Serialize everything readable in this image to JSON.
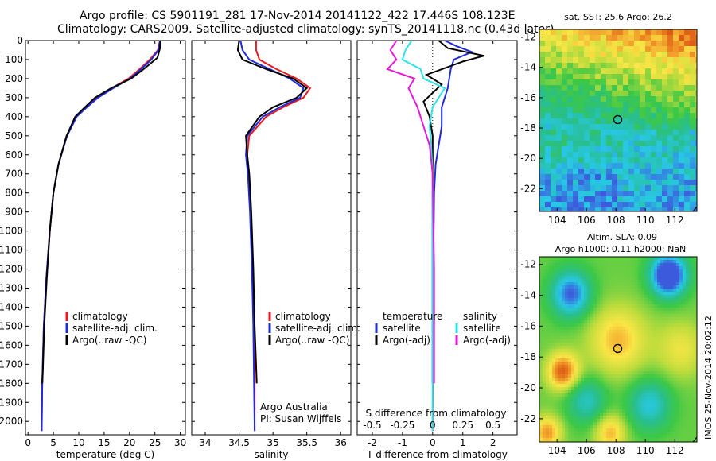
{
  "header": {
    "line1": "Argo profile: CS 5901191_281 17-Nov-2014 20141122_422 17.446S 108.123E",
    "line2": "Climatology: CARS2009. Satellite-adjusted climatology: synTS_20141118.nc (0.43d later)"
  },
  "footer_text": "IMOS 25-Nov-2014 20:02:12",
  "colors": {
    "climatology": "#e8191e",
    "satellite": "#1f2bd6",
    "argo": "#000000",
    "satellite_s": "#29e3e8",
    "argo_s": "#e31ad6"
  },
  "chart_data": [
    {
      "type": "line",
      "id": "temperature",
      "xlabel": "temperature (deg C)",
      "ylabel": "",
      "xlim": [
        -0.5,
        31
      ],
      "ylim": [
        0,
        2070
      ],
      "xticks": [
        0,
        5,
        10,
        15,
        20,
        25,
        30
      ],
      "yticks": [
        0,
        100,
        200,
        300,
        400,
        500,
        600,
        700,
        800,
        900,
        1000,
        1100,
        1200,
        1300,
        1400,
        1500,
        1600,
        1700,
        1800,
        1900,
        2000
      ],
      "legend": [
        "climatology",
        "satellite-adj. clim.",
        "Argo(..raw -QC)"
      ],
      "series": [
        {
          "name": "climatology",
          "color": "#e8191e",
          "x": [
            26.0,
            25.6,
            24.0,
            22.0,
            19.8,
            16.5,
            13.5,
            11.4,
            9.5,
            7.6,
            6.0,
            5.0,
            4.3,
            3.6,
            3.1,
            2.8,
            2.7
          ],
          "y": [
            0,
            50,
            100,
            150,
            200,
            250,
            300,
            350,
            400,
            500,
            650,
            800,
            1000,
            1250,
            1500,
            1800,
            2050
          ]
        },
        {
          "name": "satellite-adj. clim.",
          "color": "#1f2bd6",
          "x": [
            26.0,
            25.7,
            24.3,
            22.3,
            20.1,
            16.8,
            13.8,
            11.6,
            9.6,
            7.7,
            6.0,
            5.0,
            4.3,
            3.6,
            3.1,
            2.8,
            2.7
          ],
          "y": [
            0,
            50,
            100,
            150,
            200,
            250,
            300,
            350,
            400,
            500,
            650,
            800,
            1000,
            1250,
            1500,
            1800,
            2050
          ]
        },
        {
          "name": "Argo(..raw -QC)",
          "color": "#000000",
          "x": [
            26.1,
            26.0,
            25.5,
            22.8,
            20.3,
            16.4,
            13.2,
            11.2,
            9.3,
            7.6,
            6.0,
            5.0,
            4.3,
            3.7,
            3.2,
            2.9,
            2.8
          ],
          "y": [
            0,
            40,
            90,
            150,
            200,
            250,
            300,
            350,
            400,
            500,
            650,
            800,
            1000,
            1250,
            1500,
            1750,
            1800
          ]
        }
      ]
    },
    {
      "type": "line",
      "id": "salinity",
      "xlabel": "salinity",
      "xlim": [
        33.8,
        36.15
      ],
      "ylim": [
        0,
        2070
      ],
      "xticks": [
        34,
        34.5,
        35,
        35.5,
        36
      ],
      "legend": [
        "climatology",
        "satellite-adj. clim.",
        "Argo(..raw -QC)"
      ],
      "credit": [
        "Argo Australia",
        "PI: Susan Wijffels"
      ],
      "series": [
        {
          "name": "climatology",
          "color": "#e8191e",
          "x": [
            34.75,
            34.75,
            34.8,
            35.05,
            35.35,
            35.55,
            35.45,
            35.15,
            34.9,
            34.65,
            34.62,
            34.64,
            34.67,
            34.7,
            34.72,
            34.73,
            34.73
          ],
          "y": [
            0,
            50,
            100,
            150,
            200,
            250,
            300,
            350,
            400,
            500,
            600,
            700,
            900,
            1200,
            1500,
            1800,
            2050
          ]
        },
        {
          "name": "satellite-adj. clim.",
          "color": "#1f2bd6",
          "x": [
            34.52,
            34.55,
            34.65,
            34.95,
            35.25,
            35.45,
            35.4,
            35.1,
            34.85,
            34.62,
            34.6,
            34.63,
            34.66,
            34.69,
            34.71,
            34.72,
            34.73
          ],
          "y": [
            0,
            50,
            100,
            150,
            200,
            250,
            300,
            350,
            400,
            500,
            600,
            700,
            900,
            1200,
            1500,
            1800,
            2050
          ]
        },
        {
          "name": "Argo(..raw -QC)",
          "color": "#000000",
          "x": [
            34.5,
            34.48,
            34.55,
            34.9,
            35.3,
            35.5,
            35.35,
            35.0,
            34.8,
            34.6,
            34.62,
            34.65,
            34.68,
            34.71,
            34.73,
            34.75,
            34.76
          ],
          "y": [
            0,
            50,
            100,
            150,
            200,
            250,
            300,
            350,
            400,
            500,
            600,
            700,
            900,
            1200,
            1500,
            1700,
            1800
          ]
        }
      ]
    },
    {
      "type": "line",
      "id": "differences",
      "xlabel": "T difference from climatology",
      "xlabel_top": "S difference from climatology",
      "xlim": [
        -2.5,
        2.8
      ],
      "ylim": [
        0,
        2070
      ],
      "xticks": [
        -2,
        -1,
        0,
        1,
        2
      ],
      "s_ticks": [
        "-0.5",
        "-0.25",
        "0",
        "0.25",
        "0.5"
      ],
      "s_tick_positions": [
        -2,
        -1,
        0,
        1,
        2
      ],
      "legend_temperature": {
        "title": "temperature",
        "items": [
          "satellite",
          "Argo(-adj)"
        ]
      },
      "legend_salinity": {
        "title": "salinity",
        "items": [
          "satellite",
          "Argo(-adj)"
        ]
      },
      "series": [
        {
          "name": "T satellite",
          "color": "#1f2bd6",
          "x": [
            0.4,
            0.8,
            1.3,
            0.7,
            0.6,
            0.5,
            0.3,
            0.3,
            0.2,
            0.1,
            0.05,
            0.02,
            0.01,
            0
          ],
          "y": [
            0,
            30,
            60,
            100,
            150,
            250,
            350,
            450,
            550,
            650,
            800,
            1200,
            1600,
            2050
          ]
        },
        {
          "name": "T Argo(-adj)",
          "color": "#000000",
          "x": [
            0.2,
            0.5,
            1.7,
            1.0,
            -0.2,
            0.3,
            -0.3,
            -0.1,
            0.0,
            0.0,
            0.0,
            0.0
          ],
          "y": [
            0,
            40,
            80,
            110,
            180,
            230,
            320,
            400,
            500,
            600,
            1000,
            1800
          ]
        },
        {
          "name": "S satellite",
          "color": "#29e3e8",
          "x": [
            -0.7,
            -0.9,
            -1.0,
            -0.4,
            -0.3,
            0.4,
            0.0,
            -0.1,
            -0.05,
            0.0,
            0.0,
            0.0
          ],
          "y": [
            0,
            50,
            100,
            150,
            200,
            250,
            350,
            450,
            550,
            700,
            1200,
            2050
          ]
        },
        {
          "name": "S Argo(-adj)",
          "color": "#e31ad6",
          "x": [
            -1.2,
            -1.4,
            -1.2,
            -1.5,
            -0.6,
            -0.8,
            -0.5,
            -0.3,
            -0.1,
            0.0,
            0.05,
            0.05
          ],
          "y": [
            0,
            50,
            100,
            150,
            200,
            250,
            350,
            450,
            550,
            700,
            1200,
            1800
          ]
        }
      ]
    },
    {
      "type": "heatmap",
      "id": "sst_map",
      "title": "sat. SST: 25.6  Argo: 26.2",
      "xlim": [
        102.8,
        113.5
      ],
      "ylim": [
        -23.5,
        -11.5
      ],
      "xticks": [
        104,
        106,
        108,
        110,
        112
      ],
      "yticks": [
        -12,
        -14,
        -16,
        -18,
        -20,
        -22
      ],
      "marker": {
        "lon": 108.123,
        "lat": -17.446
      }
    },
    {
      "type": "heatmap",
      "id": "sla_map",
      "title_line1": "Altim. SLA: 0.09",
      "title_line2": "Argo h1000: 0.11  h2000: NaN",
      "xlim": [
        102.8,
        113.5
      ],
      "ylim": [
        -23.5,
        -11.5
      ],
      "xticks": [
        104,
        106,
        108,
        110,
        112
      ],
      "yticks": [
        -12,
        -14,
        -16,
        -18,
        -20,
        -22
      ],
      "marker": {
        "lon": 108.123,
        "lat": -17.446
      }
    }
  ]
}
